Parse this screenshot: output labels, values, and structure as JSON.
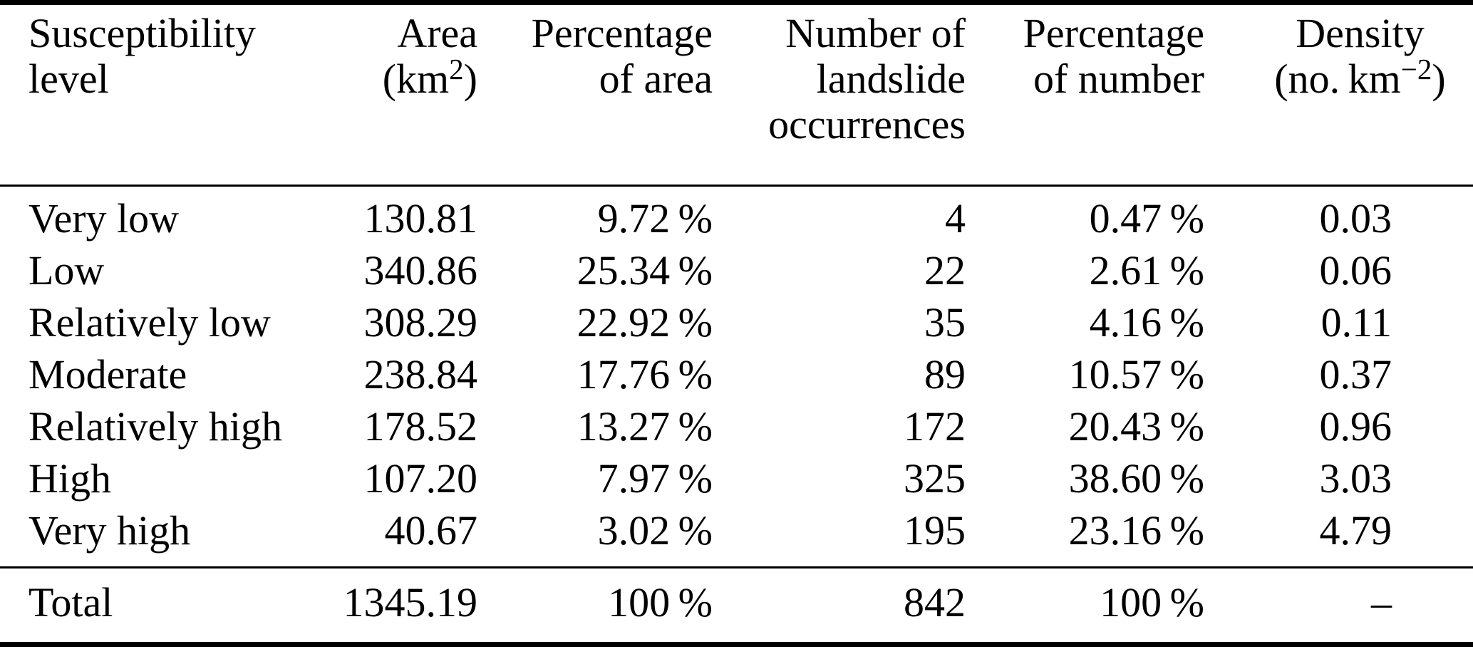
{
  "page": {
    "background_color": "#ffffff",
    "text_color": "#000000"
  },
  "table": {
    "columns": [
      {
        "line1": "Susceptibility",
        "line2": "level"
      },
      {
        "line1": "Area",
        "unit_pre": "(km",
        "unit_sup": "2",
        "unit_post": ")"
      },
      {
        "line1": "Percentage",
        "line2": "of area"
      },
      {
        "line1": "Number of",
        "line2": "landslide",
        "line3": "occurrences"
      },
      {
        "line1": "Percentage",
        "line2": "of number"
      },
      {
        "line1": "Density",
        "unit_pre": "(no. km",
        "unit_sup": "−2",
        "unit_post": ")"
      }
    ],
    "rows": [
      {
        "level": "Very low",
        "area": "130.81",
        "pct_area": "9.72 %",
        "count": "4",
        "pct_number": "0.47 %",
        "density": "0.03"
      },
      {
        "level": "Low",
        "area": "340.86",
        "pct_area": "25.34 %",
        "count": "22",
        "pct_number": "2.61 %",
        "density": "0.06"
      },
      {
        "level": "Relatively low",
        "area": "308.29",
        "pct_area": "22.92 %",
        "count": "35",
        "pct_number": "4.16 %",
        "density": "0.11"
      },
      {
        "level": "Moderate",
        "area": "238.84",
        "pct_area": "17.76 %",
        "count": "89",
        "pct_number": "10.57 %",
        "density": "0.37"
      },
      {
        "level": "Relatively high",
        "area": "178.52",
        "pct_area": "13.27 %",
        "count": "172",
        "pct_number": "20.43 %",
        "density": "0.96"
      },
      {
        "level": "High",
        "area": "107.20",
        "pct_area": "7.97 %",
        "count": "325",
        "pct_number": "38.60 %",
        "density": "3.03"
      },
      {
        "level": "Very high",
        "area": "40.67",
        "pct_area": "3.02 %",
        "count": "195",
        "pct_number": "23.16 %",
        "density": "4.79"
      }
    ],
    "total_row": {
      "level": "Total",
      "area": "1345.19",
      "pct_area": "100 %",
      "count": "842",
      "pct_number": "100 %",
      "density": "–"
    }
  }
}
